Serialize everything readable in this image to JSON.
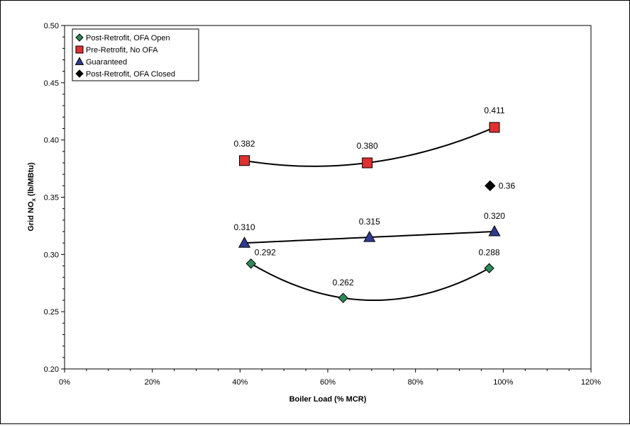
{
  "chart_data": {
    "type": "scatter",
    "xlabel": "Boiler Load (% MCR)",
    "ylabel_main": "Grid NO",
    "ylabel_sub": "x",
    "ylabel_rest": " (lb/MBtu)",
    "xlim": [
      0,
      120
    ],
    "ylim": [
      0.2,
      0.5
    ],
    "xticks": [
      0,
      20,
      40,
      60,
      80,
      100,
      120
    ],
    "xtick_labels": [
      "0%",
      "20%",
      "40%",
      "60%",
      "80%",
      "100%",
      "120%"
    ],
    "yticks": [
      0.2,
      0.25,
      0.3,
      0.35,
      0.4,
      0.45,
      0.5
    ],
    "ytick_labels": [
      "0.20",
      "0.25",
      "0.30",
      "0.35",
      "0.40",
      "0.45",
      "0.50"
    ],
    "grid": false,
    "legend_position": "top-left",
    "series": [
      {
        "name": "Post-Retrofit, OFA Open",
        "marker": "diamond",
        "color": "#2e8b57",
        "trendline": true,
        "points": [
          {
            "x": 42.5,
            "y": 0.292,
            "label": "0.292"
          },
          {
            "x": 63.5,
            "y": 0.262,
            "label": "0.262"
          },
          {
            "x": 96.8,
            "y": 0.288,
            "label": "0.288"
          }
        ]
      },
      {
        "name": "Pre-Retrofit, No OFA",
        "marker": "square",
        "color": "#e03030",
        "trendline": true,
        "points": [
          {
            "x": 41.0,
            "y": 0.382,
            "label": "0.382"
          },
          {
            "x": 69.0,
            "y": 0.38,
            "label": "0.380"
          },
          {
            "x": 98.0,
            "y": 0.411,
            "label": "0.411"
          }
        ]
      },
      {
        "name": "Guaranteed",
        "marker": "triangle",
        "color": "#2f3a8f",
        "trendline": true,
        "points": [
          {
            "x": 41.0,
            "y": 0.31,
            "label": "0.310"
          },
          {
            "x": 69.5,
            "y": 0.315,
            "label": "0.315"
          },
          {
            "x": 98.0,
            "y": 0.32,
            "label": "0.320"
          }
        ]
      },
      {
        "name": "Post-Retrofit, OFA Closed",
        "marker": "diamond",
        "color": "#000000",
        "trendline": false,
        "points": [
          {
            "x": 97.0,
            "y": 0.36,
            "label": "0.36"
          }
        ]
      }
    ]
  }
}
